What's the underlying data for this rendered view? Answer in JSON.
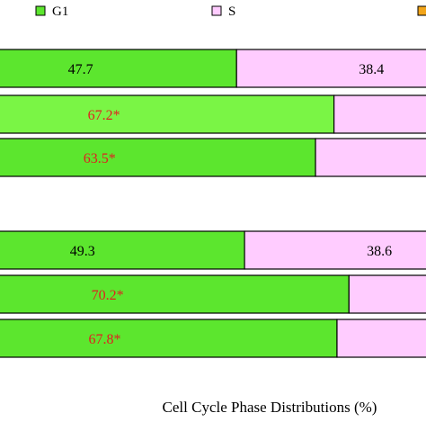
{
  "chart_data": {
    "type": "bar",
    "orientation": "horizontal",
    "stacked": true,
    "xlabel": "Cell Cycle Phase Distributions (%)",
    "ylabel": "",
    "title": "",
    "xlim": [
      0,
      100
    ],
    "grid": false,
    "legend_position": "top",
    "legend": [
      {
        "label": "G1",
        "color": "#5CE62E"
      },
      {
        "label": "S",
        "color": "#FFCCFF"
      },
      {
        "label": "",
        "color": "#F2A51A"
      }
    ],
    "groups": [
      {
        "bars": [
          {
            "g1": 47.7,
            "s": 38.4,
            "g1_label": "47.7",
            "s_label": "38.4",
            "g1_label_color": "#000000",
            "g1_color": "#5CE62E"
          },
          {
            "g1": 67.2,
            "s": 22.0,
            "g1_label": "67.2*",
            "s_label": "",
            "g1_label_color": "#E02020",
            "g1_color": "#7AF545"
          },
          {
            "g1": 63.5,
            "s": 24.0,
            "g1_label": "63.5*",
            "s_label": "",
            "g1_label_color": "#E02020",
            "g1_color": "#5CE62E"
          }
        ]
      },
      {
        "bars": [
          {
            "g1": 49.3,
            "s": 38.6,
            "g1_label": "49.3",
            "s_label": "38.6",
            "g1_label_color": "#000000",
            "g1_color": "#5CE62E"
          },
          {
            "g1": 70.2,
            "s": 20.0,
            "g1_label": "70.2*",
            "s_label": "",
            "g1_label_color": "#E02020",
            "g1_color": "#5CE62E"
          },
          {
            "g1": 67.8,
            "s": 21.0,
            "g1_label": "67.8*",
            "s_label": "",
            "g1_label_color": "#E02020",
            "g1_color": "#5CE62E"
          }
        ]
      }
    ]
  }
}
